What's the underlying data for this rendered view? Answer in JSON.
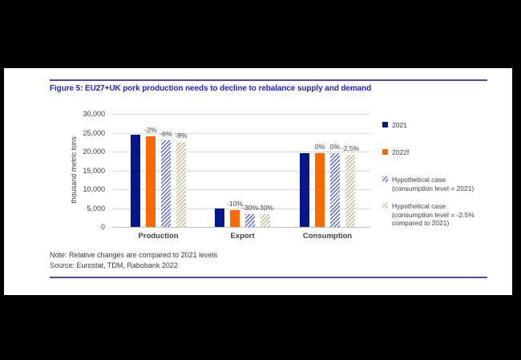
{
  "figure": {
    "title": "Figure 5: EU27+UK pork production needs to decline to rebalance supply and demand"
  },
  "footer": {
    "note": "Note: Relative changes are compared to 2021 levels",
    "source": "Source: Eurostat, TDM, Rabobank 2022"
  },
  "colors": {
    "title_blue": "#2323C8",
    "rule_blue": "#4A4AC8",
    "navy": "#061589",
    "orange": "#F96900",
    "hatch_blue": "#5B67D3",
    "hatch_tan": "#C5BC96",
    "gridline": "#D9D9D9",
    "axis_line": "#BFBFBF",
    "text": "#404040"
  },
  "chart_data": {
    "type": "bar",
    "title": "Figure 5: EU27+UK pork production needs to decline to rebalance supply and demand",
    "xlabel": "",
    "ylabel": "thousand metric tons",
    "ylim": [
      0,
      30000
    ],
    "ytick_interval": 5000,
    "ytick_labels": [
      "0",
      "5,000",
      "10,000",
      "15,000",
      "20,000",
      "25,000",
      "30,000"
    ],
    "grid": true,
    "legend_position": "right",
    "categories": [
      "Production",
      "Export",
      "Consumption"
    ],
    "series": [
      {
        "name": "2021",
        "fill": "solid",
        "color": "navy",
        "values": [
          24500,
          5000,
          19600
        ],
        "bar_labels": [
          "",
          "",
          ""
        ]
      },
      {
        "name": "2022f",
        "fill": "solid",
        "color": "orange",
        "values": [
          24000,
          4500,
          19600
        ],
        "bar_labels": [
          "-2%",
          "-10%",
          "0%"
        ]
      },
      {
        "name": "Hypothetical case (consumption level = 2021)",
        "fill": "hatch",
        "color": "hatch_blue",
        "values": [
          23030,
          3500,
          19600
        ],
        "bar_labels": [
          "-6%",
          "-30%",
          "0%"
        ]
      },
      {
        "name": "Hypothetical case (consumption level = -2.5% compared to 2021)",
        "fill": "hatch",
        "color": "hatch_tan",
        "values": [
          22540,
          3500,
          19110
        ],
        "bar_labels": [
          "-8%",
          "-30%",
          "-2.5%"
        ]
      }
    ],
    "legend": [
      {
        "marker": "solid",
        "color": "navy",
        "lines": [
          "2021"
        ]
      },
      {
        "marker": "solid",
        "color": "orange",
        "lines": [
          "2022f"
        ]
      },
      {
        "marker": "hatch",
        "color": "hatch_blue",
        "lines": [
          "Hypothetical case",
          "(consumption level = 2021)"
        ]
      },
      {
        "marker": "hatch",
        "color": "hatch_tan",
        "lines": [
          "Hypothetical case",
          "(consumption level = -2.5%",
          "compared to 2021)"
        ]
      }
    ]
  }
}
